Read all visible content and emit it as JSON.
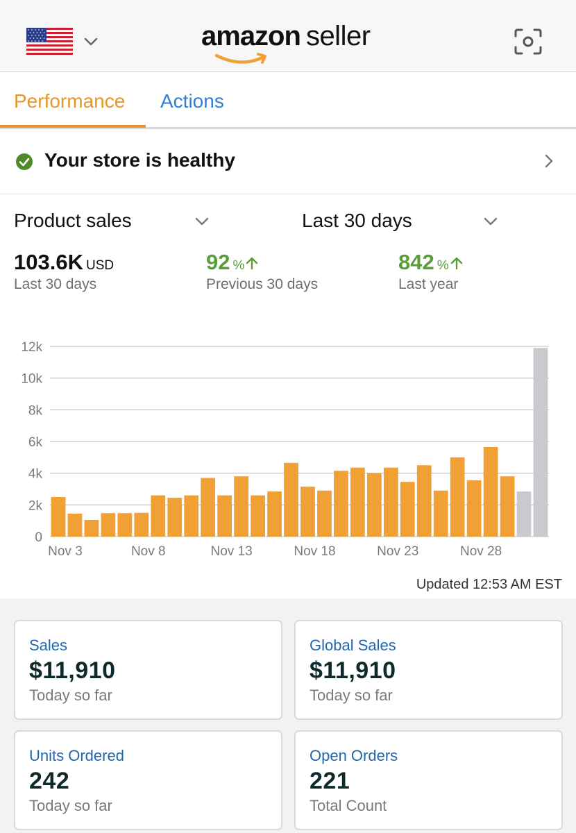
{
  "header": {
    "brand_main": "amazon",
    "brand_sub": "seller",
    "country_flag": "us-flag",
    "scan_icon": "scan-icon"
  },
  "tabs": [
    {
      "label": "Performance",
      "active": true
    },
    {
      "label": "Actions",
      "active": false
    }
  ],
  "health": {
    "text": "Your store is healthy",
    "status_color": "#4e8a2a"
  },
  "selectors": {
    "metric": "Product sales",
    "range": "Last 30 days"
  },
  "stats": [
    {
      "value": "103.6K",
      "unit": "USD",
      "label": "Last 30 days"
    },
    {
      "value": "92",
      "unit": "%",
      "label": "Previous 30 days",
      "trend": "up"
    },
    {
      "value": "842",
      "unit": "%",
      "label": "Last year",
      "trend": "up"
    }
  ],
  "chart_data": {
    "type": "bar",
    "ylim": [
      0,
      12000
    ],
    "y_ticks": [
      0,
      2000,
      4000,
      6000,
      8000,
      10000,
      12000
    ],
    "y_tick_labels": [
      "0",
      "2k",
      "4k",
      "6k",
      "8k",
      "10k",
      "12k"
    ],
    "x_tick_labels": [
      {
        "index": 1,
        "label": "Nov 3"
      },
      {
        "index": 6,
        "label": "Nov 8"
      },
      {
        "index": 11,
        "label": "Nov 13"
      },
      {
        "index": 16,
        "label": "Nov 18"
      },
      {
        "index": 21,
        "label": "Nov 23"
      },
      {
        "index": 26,
        "label": "Nov 28"
      }
    ],
    "values": [
      2500,
      1450,
      1050,
      1480,
      1480,
      1500,
      2600,
      2450,
      2600,
      3700,
      2600,
      3800,
      2600,
      2850,
      4650,
      3150,
      2900,
      4150,
      4350,
      4000,
      4350,
      3450,
      4500,
      2900,
      5000,
      3550,
      5650,
      3800,
      2850,
      11900
    ],
    "bar_colors": [
      "#f0a035",
      "#f0a035",
      "#f0a035",
      "#f0a035",
      "#f0a035",
      "#f0a035",
      "#f0a035",
      "#f0a035",
      "#f0a035",
      "#f0a035",
      "#f0a035",
      "#f0a035",
      "#f0a035",
      "#f0a035",
      "#f0a035",
      "#f0a035",
      "#f0a035",
      "#f0a035",
      "#f0a035",
      "#f0a035",
      "#f0a035",
      "#f0a035",
      "#f0a035",
      "#f0a035",
      "#f0a035",
      "#f0a035",
      "#f0a035",
      "#f0a035",
      "#c9c9ce",
      "#c9c9ce"
    ],
    "grid": true
  },
  "updated": "Updated 12:53 AM EST",
  "cards": [
    {
      "title": "Sales",
      "value": "$11,910",
      "sub": "Today so far"
    },
    {
      "title": "Global Sales",
      "value": "$11,910",
      "sub": "Today so far"
    },
    {
      "title": "Units Ordered",
      "value": "242",
      "sub": "Today so far"
    },
    {
      "title": "Open Orders",
      "value": "221",
      "sub": "Total Count"
    }
  ],
  "colors": {
    "accent": "#e8962b",
    "link": "#2f7ed8",
    "positive": "#5a9e3a",
    "card_title": "#2167b0"
  }
}
